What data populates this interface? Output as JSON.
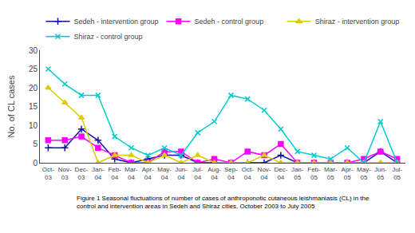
{
  "chart_data": {
    "type": "line",
    "ylabel": "No. of CL cases",
    "annotations": [
      "Figure 1 Seasonal fluctuations of number of cases of anthroponotic cutaneous leishmaniasis (CL) in the\ncontrol and intervention areas in Sedeh and Shiraz cities, October 2003 to July 2005"
    ],
    "categories": [
      "Oct-\n03",
      "Nov-\n03",
      "Dec-\n03",
      "Jan-\n04",
      "Feb-\n04",
      "Mar-\n04",
      "Apr-\n04",
      "May-\n04",
      "Jun-\n04",
      "Jul-\n04",
      "Aug-\n04",
      "Sep-\n04",
      "Oct-\n04",
      "Nov-\n04",
      "Dec-\n04",
      "Jan-\n05",
      "Feb-\n05",
      "Mar-\n05",
      "Apr-\n05",
      "May-\n05",
      "Jun-\n05",
      "Jul-\n05"
    ],
    "series": [
      {
        "name": "Sedeh - intervention group",
        "color": "#1010AA",
        "marker": "plus",
        "values": [
          4,
          4,
          9,
          6,
          1,
          0,
          1,
          2,
          2,
          0,
          0,
          0,
          0,
          0,
          2,
          0,
          0,
          0,
          0,
          0,
          3,
          0
        ]
      },
      {
        "name": "Sedeh - control group",
        "color": "#FF00FF",
        "marker": "square",
        "values": [
          6,
          6,
          7,
          4,
          2,
          0,
          0,
          3,
          3,
          0,
          1,
          0,
          3,
          2,
          5,
          0,
          0,
          0,
          0,
          1,
          3,
          1
        ]
      },
      {
        "name": "Shiraz - intervention group",
        "color": "#DDCC00",
        "marker": "triangle-up",
        "values": [
          20,
          16,
          12,
          0,
          2,
          2,
          0,
          2,
          0,
          2,
          0,
          0,
          0,
          2,
          0,
          0,
          0,
          0,
          0,
          0,
          0,
          0
        ]
      },
      {
        "name": "Shiraz - control group",
        "color": "#00CCCC",
        "marker": "x",
        "values": [
          25,
          21,
          18,
          18,
          7,
          4,
          2,
          4,
          2,
          8,
          11,
          18,
          17,
          14,
          9,
          3,
          2,
          1,
          4,
          0,
          11,
          0
        ]
      }
    ],
    "ylim": [
      0,
      30
    ],
    "yticks": [
      0,
      5,
      10,
      15,
      20,
      25,
      30
    ],
    "grid": false,
    "legend": "top"
  }
}
